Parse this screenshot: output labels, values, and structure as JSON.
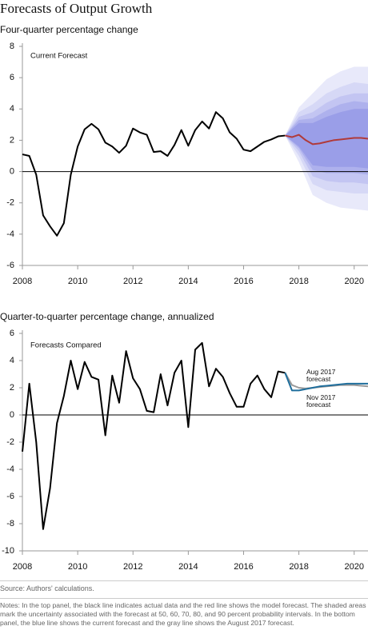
{
  "title": "Forecasts of Output Growth",
  "source": "Source: Authors' calculations.",
  "notes": "Notes: In the top panel, the black line indicates actual data and the red line shows the model forecast. The shaded areas mark the uncertainty associated with the forecast at 50, 60, 70, 80, and 90 percent probability intervals. In the bottom panel, the blue line shows the current forecast and the gray line shows the August 2017 forecast.",
  "chart_data": [
    {
      "type": "line",
      "subtitle": "Four-quarter percentage change",
      "panel_label": "Current Forecast",
      "xlim": [
        2008,
        2020.5
      ],
      "xticks": [
        2008,
        2010,
        2012,
        2014,
        2016,
        2018,
        2020
      ],
      "ylim": [
        -6,
        8
      ],
      "yticks": [
        -6,
        -4,
        -2,
        0,
        2,
        4,
        6,
        8
      ],
      "fan": {
        "x": [
          2017.5,
          2018,
          2018.5,
          2019,
          2019.5,
          2020,
          2020.5
        ],
        "bands": [
          {
            "color": "#e8e9fa",
            "upper": [
              2.3,
              4.1,
              5.0,
              5.9,
              6.4,
              6.7,
              6.7
            ],
            "lower": [
              2.3,
              0.6,
              -1.5,
              -2.0,
              -2.3,
              -2.4,
              -2.5
            ]
          },
          {
            "color": "#d6d8f6",
            "upper": [
              2.3,
              3.8,
              4.3,
              5.0,
              5.4,
              5.7,
              5.6
            ],
            "lower": [
              2.3,
              1.0,
              -0.8,
              -1.2,
              -1.3,
              -1.4,
              -1.4
            ]
          },
          {
            "color": "#c3c5f2",
            "upper": [
              2.3,
              3.5,
              3.8,
              4.4,
              4.8,
              5.0,
              5.0
            ],
            "lower": [
              2.3,
              1.3,
              -0.3,
              -0.6,
              -0.7,
              -0.7,
              -0.8
            ]
          },
          {
            "color": "#aeb1ed",
            "upper": [
              2.3,
              3.3,
              3.4,
              3.9,
              4.3,
              4.5,
              4.4
            ],
            "lower": [
              2.3,
              1.5,
              0.1,
              -0.1,
              -0.1,
              -0.1,
              -0.2
            ]
          },
          {
            "color": "#9a9ee8",
            "upper": [
              2.3,
              3.1,
              3.1,
              3.5,
              3.8,
              4.0,
              4.0
            ],
            "lower": [
              2.3,
              1.6,
              0.4,
              0.3,
              0.3,
              0.3,
              0.2
            ]
          }
        ]
      },
      "series": [
        {
          "color": "#000000",
          "x": [
            2008,
            2008.25,
            2008.5,
            2008.75,
            2009,
            2009.25,
            2009.5,
            2009.75,
            2010,
            2010.25,
            2010.5,
            2010.75,
            2011,
            2011.25,
            2011.5,
            2011.75,
            2012,
            2012.25,
            2012.5,
            2012.75,
            2013,
            2013.25,
            2013.5,
            2013.75,
            2014,
            2014.25,
            2014.5,
            2014.75,
            2015,
            2015.25,
            2015.5,
            2015.75,
            2016,
            2016.25,
            2016.5,
            2016.75,
            2017,
            2017.25,
            2017.5
          ],
          "values": [
            1.1,
            1.0,
            -0.2,
            -2.8,
            -3.5,
            -4.1,
            -3.3,
            -0.2,
            1.6,
            2.7,
            3.05,
            2.7,
            1.85,
            1.6,
            1.2,
            1.65,
            2.75,
            2.5,
            2.35,
            1.25,
            1.3,
            1.0,
            1.7,
            2.65,
            1.65,
            2.65,
            3.2,
            2.75,
            3.8,
            3.4,
            2.5,
            2.1,
            1.4,
            1.3,
            1.6,
            1.9,
            2.05,
            2.25,
            2.3
          ]
        },
        {
          "color": "#b03a3a",
          "x": [
            2017.5,
            2017.75,
            2018,
            2018.25,
            2018.5,
            2018.75,
            2019,
            2019.25,
            2019.5,
            2019.75,
            2020,
            2020.25,
            2020.5
          ],
          "values": [
            2.3,
            2.2,
            2.35,
            2.0,
            1.75,
            1.8,
            1.9,
            2.0,
            2.05,
            2.1,
            2.15,
            2.15,
            2.1
          ]
        }
      ]
    },
    {
      "type": "line",
      "subtitle": "Quarter-to-quarter percentage change, annualized",
      "panel_label": "Forecasts Compared",
      "xlim": [
        2008,
        2020.5
      ],
      "xticks": [
        2008,
        2010,
        2012,
        2014,
        2016,
        2018,
        2020
      ],
      "ylim": [
        -10,
        6
      ],
      "yticks": [
        -10,
        -8,
        -6,
        -4,
        -2,
        0,
        2,
        4,
        6
      ],
      "series": [
        {
          "color": "#000000",
          "x": [
            2008,
            2008.25,
            2008.5,
            2008.75,
            2009,
            2009.25,
            2009.5,
            2009.75,
            2010,
            2010.25,
            2010.5,
            2010.75,
            2011,
            2011.25,
            2011.5,
            2011.75,
            2012,
            2012.25,
            2012.5,
            2012.75,
            2013,
            2013.25,
            2013.5,
            2013.75,
            2014,
            2014.25,
            2014.5,
            2014.75,
            2015,
            2015.25,
            2015.5,
            2015.75,
            2016,
            2016.25,
            2016.5,
            2016.75,
            2017,
            2017.25,
            2017.5
          ],
          "values": [
            -2.7,
            2.3,
            -2.0,
            -8.4,
            -5.4,
            -0.6,
            1.4,
            4.0,
            1.9,
            3.9,
            2.8,
            2.6,
            -1.5,
            2.9,
            0.9,
            4.7,
            2.7,
            1.9,
            0.3,
            0.2,
            3.0,
            0.7,
            3.1,
            4.0,
            -0.9,
            4.8,
            5.3,
            2.1,
            3.4,
            2.8,
            1.6,
            0.6,
            0.6,
            2.3,
            2.9,
            1.9,
            1.3,
            3.2,
            3.1
          ]
        },
        {
          "name": "Aug 2017 forecast",
          "color": "#9a9a9a",
          "x": [
            2017.5,
            2017.75,
            2018,
            2018.25,
            2018.5,
            2018.75,
            2019,
            2019.25,
            2019.5,
            2019.75,
            2020,
            2020.25,
            2020.5
          ],
          "values": [
            3.1,
            2.2,
            2.0,
            1.95,
            2.0,
            2.05,
            2.1,
            2.15,
            2.2,
            2.2,
            2.2,
            2.15,
            2.1
          ]
        },
        {
          "name": "Nov 2017 forecast",
          "color": "#1f6e9c",
          "x": [
            2017.5,
            2017.75,
            2018,
            2018.25,
            2018.5,
            2018.75,
            2019,
            2019.25,
            2019.5,
            2019.75,
            2020,
            2020.25,
            2020.5
          ],
          "values": [
            3.1,
            1.8,
            1.8,
            1.9,
            2.0,
            2.1,
            2.15,
            2.2,
            2.25,
            2.3,
            2.3,
            2.3,
            2.3
          ]
        }
      ]
    }
  ]
}
